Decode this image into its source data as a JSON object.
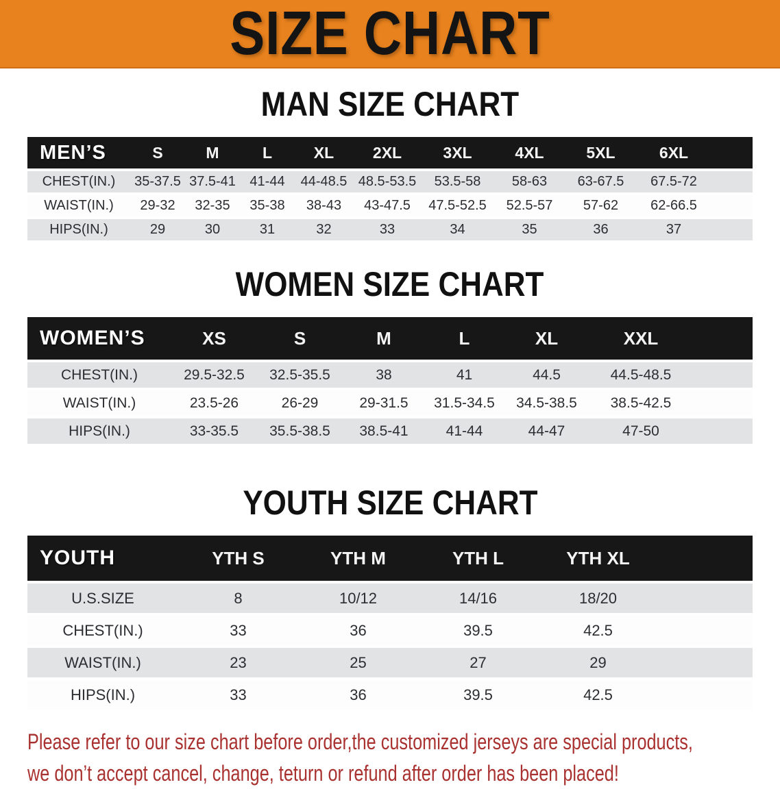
{
  "banner": {
    "title": "SIZE CHART",
    "bg_color": "#E8821E"
  },
  "sections": [
    {
      "heading": "MAN SIZE CHART",
      "label_header": "MEN’S",
      "columns": [
        "S",
        "M",
        "L",
        "XL",
        "2XL",
        "3XL",
        "4XL",
        "5XL",
        "6XL"
      ],
      "rows": [
        {
          "label": "CHEST(IN.)",
          "values": [
            "35-37.5",
            "37.5-41",
            "41-44",
            "44-48.5",
            "48.5-53.5",
            "53.5-58",
            "58-63",
            "63-67.5",
            "67.5-72"
          ]
        },
        {
          "label": "WAIST(IN.)",
          "values": [
            "29-32",
            "32-35",
            "35-38",
            "38-43",
            "43-47.5",
            "47.5-52.5",
            "52.5-57",
            "57-62",
            "62-66.5"
          ]
        },
        {
          "label": "HIPS(IN.)",
          "values": [
            "29",
            "30",
            "31",
            "32",
            "33",
            "34",
            "35",
            "36",
            "37"
          ]
        }
      ]
    },
    {
      "heading": "WOMEN SIZE CHART",
      "label_header": "WOMEN’S",
      "columns": [
        "XS",
        "S",
        "M",
        "L",
        "XL",
        "XXL"
      ],
      "rows": [
        {
          "label": "CHEST(IN.)",
          "values": [
            "29.5-32.5",
            "32.5-35.5",
            "38",
            "41",
            "44.5",
            "44.5-48.5"
          ]
        },
        {
          "label": "WAIST(IN.)",
          "values": [
            "23.5-26",
            "26-29",
            "29-31.5",
            "31.5-34.5",
            "34.5-38.5",
            "38.5-42.5"
          ]
        },
        {
          "label": "HIPS(IN.)",
          "values": [
            "33-35.5",
            "35.5-38.5",
            "38.5-41",
            "41-44",
            "44-47",
            "47-50"
          ]
        }
      ]
    },
    {
      "heading": "YOUTH SIZE CHART",
      "label_header": "YOUTH",
      "columns": [
        "YTH S",
        "YTH M",
        "YTH L",
        "YTH XL"
      ],
      "rows": [
        {
          "label": "U.S.SIZE",
          "values": [
            "8",
            "10/12",
            "14/16",
            "18/20"
          ]
        },
        {
          "label": "CHEST(IN.)",
          "values": [
            "33",
            "36",
            "39.5",
            "42.5"
          ]
        },
        {
          "label": "WAIST(IN.)",
          "values": [
            "23",
            "25",
            "27",
            "29"
          ]
        },
        {
          "label": "HIPS(IN.)",
          "values": [
            "33",
            "36",
            "39.5",
            "42.5"
          ]
        }
      ]
    }
  ],
  "disclaimer": {
    "line1": "Please refer to our size chart before order,the customized jerseys are special products,",
    "line2": "we don’t accept cancel, change, teturn or refund after order has been placed!",
    "color": "#A93230"
  }
}
